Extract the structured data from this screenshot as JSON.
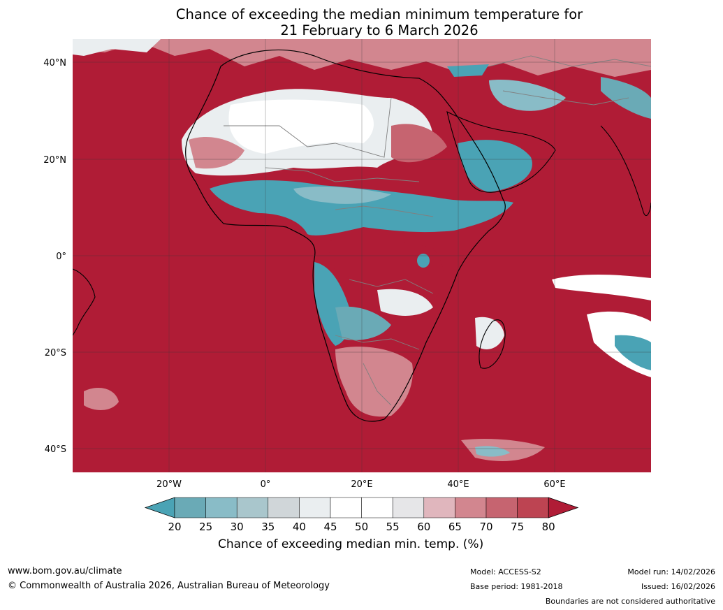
{
  "title": {
    "line1": "Chance of exceeding the median minimum temperature for",
    "line2": "21 February to 6 March 2026"
  },
  "axes": {
    "lat_labels": [
      "40°N",
      "20°N",
      "0°",
      "20°S",
      "40°S"
    ],
    "lon_labels": [
      "20°W",
      "0°",
      "20°E",
      "40°E",
      "60°E"
    ]
  },
  "colorbar": {
    "title": "Chance of exceeding median min. temp. (%)",
    "ticks": [
      "20",
      "25",
      "30",
      "35",
      "40",
      "45",
      "50",
      "55",
      "60",
      "65",
      "70",
      "75",
      "80"
    ],
    "colors": [
      "#4aa3b5",
      "#6aaab6",
      "#89bcc7",
      "#a9c6cc",
      "#d0d6d9",
      "#eaeef0",
      "#ffffff",
      "#ffffff",
      "#e6e6e8",
      "#e0b6bd",
      "#d2868f",
      "#c66470",
      "#bd4452",
      "#b01c36"
    ]
  },
  "footer": {
    "website": "www.bom.gov.au/climate",
    "copyright": "© Commonwealth of Australia 2026, Australian Bureau of Meteorology",
    "model": "Model: ACCESS-S2",
    "base_period": "Base period: 1981-2018",
    "model_run": "Model run: 14/02/2026",
    "issued": "Issued: 16/02/2026",
    "disclaimer": "Boundaries are not considered authoritative"
  },
  "colors": {
    "warm": "#b01c36",
    "cool": "#4aa3b5",
    "neutral": "#ffffff"
  }
}
